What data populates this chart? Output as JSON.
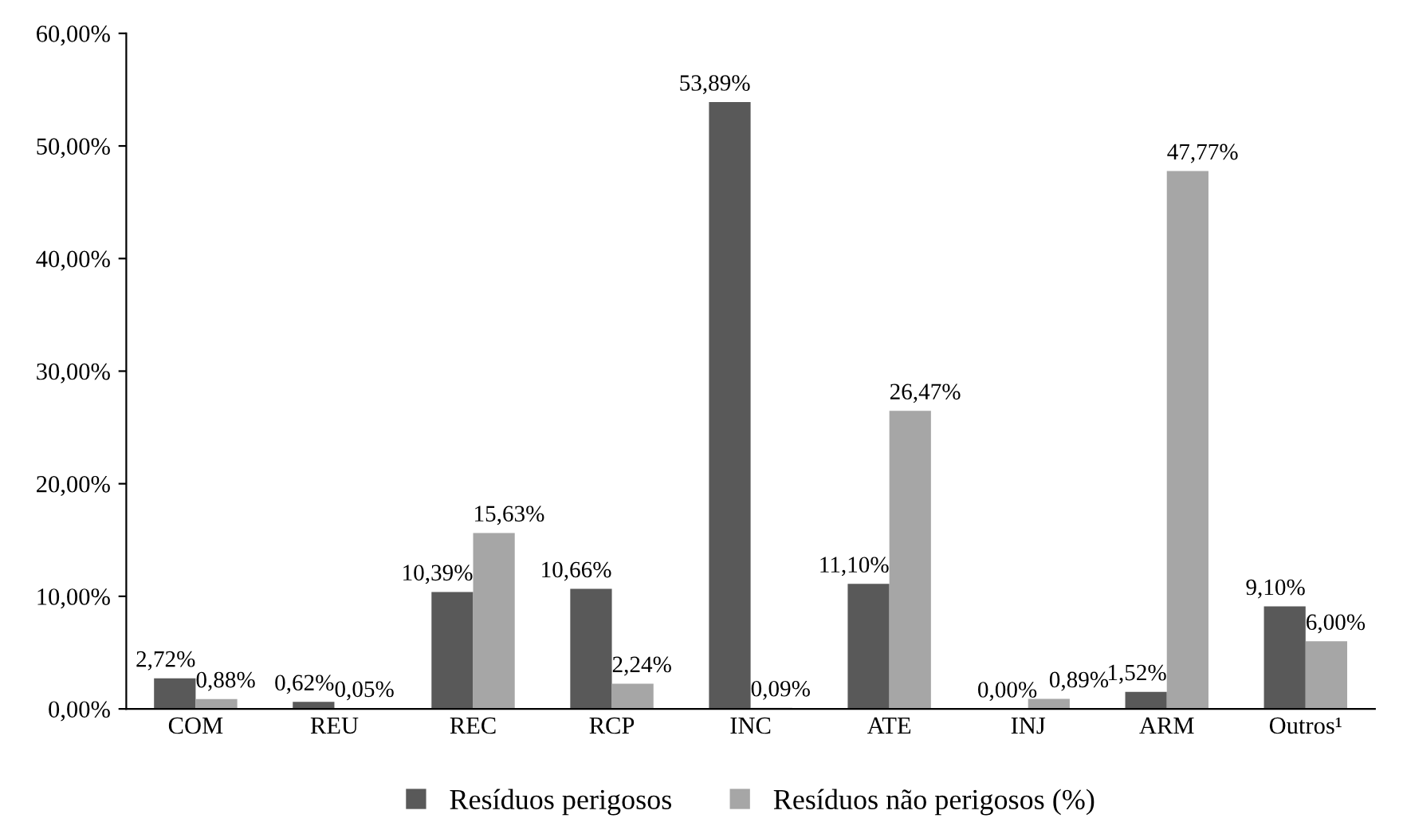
{
  "chart_data": {
    "type": "bar",
    "categories": [
      "COM",
      "REU",
      "REC",
      "RCP",
      "INC",
      "ATE",
      "INJ",
      "ARM",
      "Outros¹"
    ],
    "series": [
      {
        "name": "Resíduos perigosos",
        "color": "#595959",
        "values": [
          2.72,
          0.62,
          10.39,
          10.66,
          53.89,
          11.1,
          0.0,
          1.52,
          9.1
        ],
        "value_labels": [
          "2,72%",
          "0,62%",
          "10,39%",
          "10,66%",
          "53,89%",
          "11,10%",
          "0,00%",
          "1,52%",
          "9,10%"
        ]
      },
      {
        "name": "Resíduos não perigosos (%)",
        "color": "#a6a6a6",
        "values": [
          0.88,
          0.05,
          15.63,
          2.24,
          0.09,
          26.47,
          0.89,
          47.77,
          6.0
        ],
        "value_labels": [
          "0,88%",
          "0,05%",
          "15,63%",
          "2,24%",
          "0,09%",
          "26,47%",
          "0,89%",
          "47,77%",
          "6,00%"
        ]
      }
    ],
    "ylim": [
      0,
      60
    ],
    "yticks": [
      {
        "value": 0,
        "label": "0,00%"
      },
      {
        "value": 10,
        "label": "10,00%"
      },
      {
        "value": 20,
        "label": "20,00%"
      },
      {
        "value": 30,
        "label": "30,00%"
      },
      {
        "value": 40,
        "label": "40,00%"
      },
      {
        "value": 50,
        "label": "50,00%"
      },
      {
        "value": 60,
        "label": "60,00%"
      }
    ],
    "grid": false,
    "legend": "bottom"
  }
}
